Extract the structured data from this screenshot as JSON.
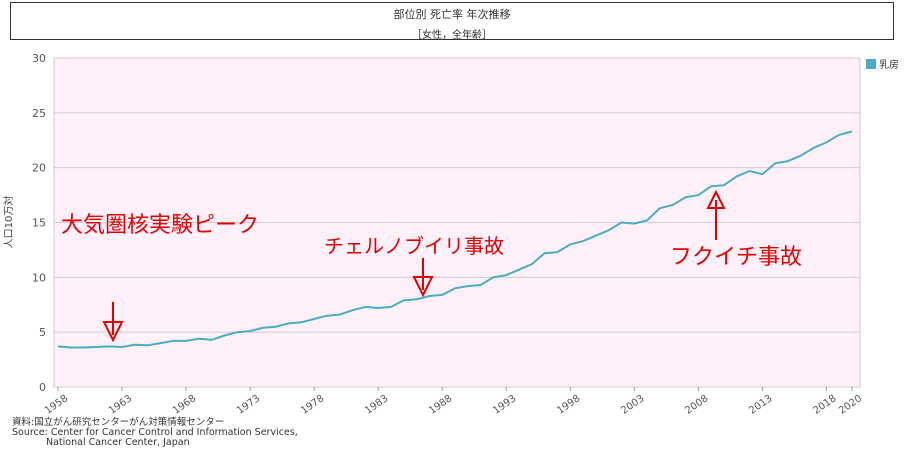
{
  "header": {
    "title": "部位別 死亡率 年次推移",
    "subtitle": "［女性，全年齢］"
  },
  "legend": {
    "label": "乳房",
    "color": "#4bacc6"
  },
  "source": {
    "line1": "資料:国立がん研究センターがん対策情報センター",
    "line2": "Source: Center for Cancer Control and Information Services,",
    "line3": "National Cancer Center, Japan"
  },
  "annotations": {
    "peak": "大気圏核実験ピーク",
    "chernobyl": "チェルノブイリ事故",
    "fukushima": "フクイチ事故"
  },
  "chart_data": {
    "type": "line",
    "ylabel": "人口10万対",
    "xlabel": "",
    "ylim": [
      0,
      30
    ],
    "yticks": [
      0,
      5,
      10,
      15,
      20,
      25,
      30
    ],
    "xticks": [
      1958,
      1963,
      1968,
      1973,
      1978,
      1983,
      1988,
      1993,
      1998,
      2003,
      2008,
      2013,
      2018,
      2020
    ],
    "xlim": [
      1958,
      2020
    ],
    "plot_background": "#fff0fa",
    "series": [
      {
        "name": "乳房",
        "color": "#4bacc6",
        "x": [
          1958,
          1959,
          1960,
          1961,
          1962,
          1963,
          1964,
          1965,
          1966,
          1967,
          1968,
          1969,
          1970,
          1971,
          1972,
          1973,
          1974,
          1975,
          1976,
          1977,
          1978,
          1979,
          1980,
          1981,
          1982,
          1983,
          1984,
          1985,
          1986,
          1987,
          1988,
          1989,
          1990,
          1991,
          1992,
          1993,
          1994,
          1995,
          1996,
          1997,
          1998,
          1999,
          2000,
          2001,
          2002,
          2003,
          2004,
          2005,
          2006,
          2007,
          2008,
          2009,
          2010,
          2011,
          2012,
          2013,
          2014,
          2015,
          2016,
          2017,
          2018,
          2019,
          2020
        ],
        "values": [
          3.7,
          3.6,
          3.6,
          3.65,
          3.7,
          3.65,
          3.85,
          3.8,
          4.0,
          4.2,
          4.2,
          4.4,
          4.3,
          4.7,
          5.0,
          5.1,
          5.4,
          5.5,
          5.8,
          5.9,
          6.2,
          6.5,
          6.6,
          7.0,
          7.3,
          7.2,
          7.3,
          7.9,
          8.0,
          8.3,
          8.4,
          9.0,
          9.2,
          9.3,
          10.0,
          10.2,
          10.7,
          11.2,
          12.2,
          12.3,
          13.0,
          13.3,
          13.8,
          14.3,
          15.0,
          14.9,
          15.2,
          16.3,
          16.6,
          17.3,
          17.5,
          18.3,
          18.4,
          19.2,
          19.7,
          19.4,
          20.4,
          20.6,
          21.1,
          21.8,
          22.3,
          23.0,
          23.3
        ]
      }
    ]
  }
}
